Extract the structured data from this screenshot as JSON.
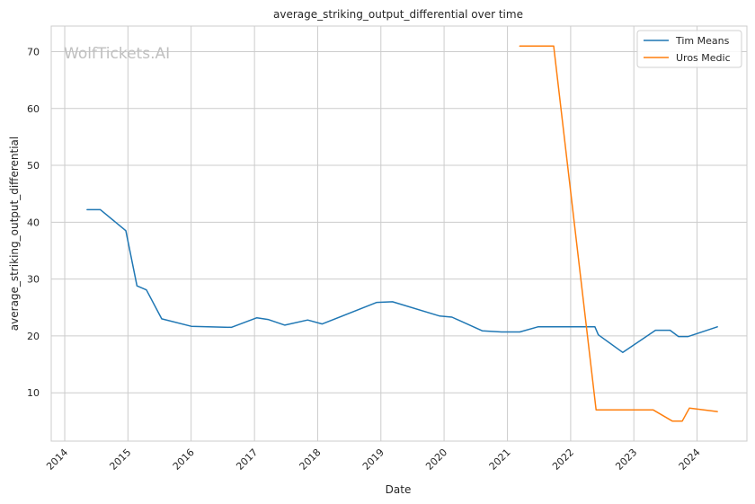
{
  "watermark": "WolfTickets.AI",
  "chart_data": {
    "type": "line",
    "title": "average_striking_output_differential over time",
    "xlabel": "Date",
    "ylabel": "average_striking_output_differential",
    "xlim": [
      "2013-10-15",
      "2024-10-15"
    ],
    "ylim": [
      1.5,
      74.5
    ],
    "x_ticks": [
      "2014",
      "2015",
      "2016",
      "2017",
      "2018",
      "2019",
      "2020",
      "2021",
      "2022",
      "2023",
      "2024"
    ],
    "y_ticks": [
      10,
      20,
      30,
      40,
      50,
      60,
      70
    ],
    "grid": true,
    "legend": {
      "position": "top-right"
    },
    "series": [
      {
        "name": "Tim Means",
        "color": "#1f77b4",
        "points": [
          [
            "2014-05-10",
            42.2
          ],
          [
            "2014-07-26",
            42.2
          ],
          [
            "2014-12-20",
            38.5
          ],
          [
            "2015-02-22",
            28.8
          ],
          [
            "2015-04-18",
            28.1
          ],
          [
            "2015-07-15",
            23.0
          ],
          [
            "2016-01-02",
            21.7
          ],
          [
            "2016-08-20",
            21.5
          ],
          [
            "2017-01-15",
            23.2
          ],
          [
            "2017-03-20",
            22.9
          ],
          [
            "2017-06-25",
            21.9
          ],
          [
            "2017-11-04",
            22.8
          ],
          [
            "2018-01-27",
            22.1
          ],
          [
            "2018-12-08",
            25.9
          ],
          [
            "2019-03-09",
            26.0
          ],
          [
            "2019-12-07",
            23.5
          ],
          [
            "2020-02-15",
            23.3
          ],
          [
            "2020-08-08",
            20.9
          ],
          [
            "2020-11-28",
            20.7
          ],
          [
            "2021-03-13",
            20.7
          ],
          [
            "2021-06-26",
            21.6
          ],
          [
            "2022-05-21",
            21.6
          ],
          [
            "2022-06-10",
            20.2
          ],
          [
            "2022-10-29",
            17.1
          ],
          [
            "2023-05-06",
            21.0
          ],
          [
            "2023-07-29",
            21.0
          ],
          [
            "2023-09-16",
            19.9
          ],
          [
            "2023-11-11",
            19.9
          ],
          [
            "2024-04-27",
            21.6
          ]
        ]
      },
      {
        "name": "Uros Medic",
        "color": "#ff7f0e",
        "points": [
          [
            "2021-03-13",
            71.0
          ],
          [
            "2021-09-25",
            71.0
          ],
          [
            "2022-05-28",
            7.0
          ],
          [
            "2023-04-22",
            7.0
          ],
          [
            "2023-08-12",
            5.0
          ],
          [
            "2023-10-07",
            5.0
          ],
          [
            "2023-11-18",
            7.3
          ],
          [
            "2024-04-27",
            6.7
          ]
        ]
      }
    ]
  }
}
